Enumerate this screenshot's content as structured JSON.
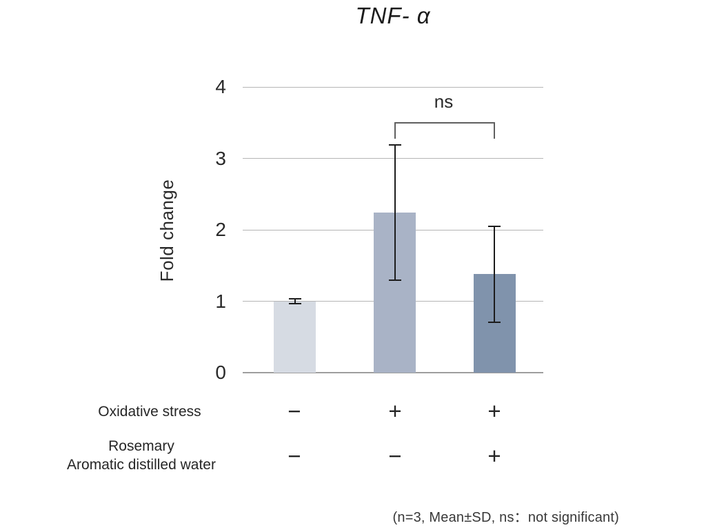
{
  "title": "TNF- α",
  "chart_data": {
    "type": "bar",
    "title": "TNF- α",
    "ylabel": "Fold change",
    "ylim": [
      0,
      4
    ],
    "yticks": [
      0,
      1,
      2,
      3,
      4
    ],
    "grid": true,
    "legend": "none",
    "categories": [
      "Oxidative stress − / Rosemary Aromatic distilled water −",
      "Oxidative stress + / Rosemary Aromatic distilled water −",
      "Oxidative stress + / Rosemary Aromatic distilled water +"
    ],
    "values": [
      1.0,
      2.24,
      1.38
    ],
    "sd": [
      0.03,
      0.95,
      0.67
    ],
    "bar_colors": [
      "#d6dbe3",
      "#a9b3c6",
      "#8093ac"
    ],
    "significance": {
      "label": "ns",
      "between": [
        1,
        2
      ]
    }
  },
  "axis": {
    "ylabel": "Fold change"
  },
  "annotations": {
    "ns_label": "ns"
  },
  "conditions": {
    "rows": [
      {
        "label": "Oxidative stress",
        "label2": "",
        "values": [
          "−",
          "+",
          "+"
        ]
      },
      {
        "label": "Rosemary",
        "label2": "Aromatic distilled water",
        "values": [
          "−",
          "−",
          "+"
        ]
      }
    ]
  },
  "footnote": "(n=3, Mean±SD, ns：not significant)",
  "colors": {
    "gridline": "#b5b5b5",
    "axis_line": "#9e9e9e",
    "error_bar": "#1c1c1c",
    "bracket": "#5f5f5f",
    "text": "#222222"
  }
}
